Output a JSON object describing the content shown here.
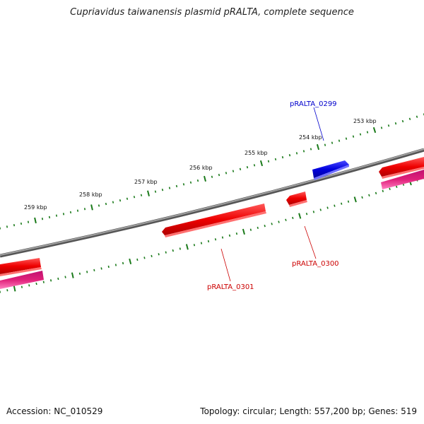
{
  "title": "Cupriavidus taiwanensis plasmid pRALTA, complete sequence",
  "accession": "Accession: NC_010529",
  "stats": "Topology: circular; Length: 557,200 bp; Genes: 519",
  "colors": {
    "backbone": "#808080",
    "tick": "#1a7a1a",
    "forward_gene": "#0000dd",
    "reverse_gene": "#ee0000",
    "rna_track": "#e0207a",
    "label_forward": "#0000cc",
    "label_reverse": "#cc0000"
  },
  "ticks": {
    "kbp_labels": [
      "253 kbp",
      "254 kbp",
      "255 kbp",
      "256 kbp",
      "257 kbp",
      "258 kbp",
      "259 kbp"
    ]
  },
  "genes": {
    "labels": [
      "pRALTA_0299",
      "pRALTA_0300",
      "pRALTA_0301"
    ]
  }
}
